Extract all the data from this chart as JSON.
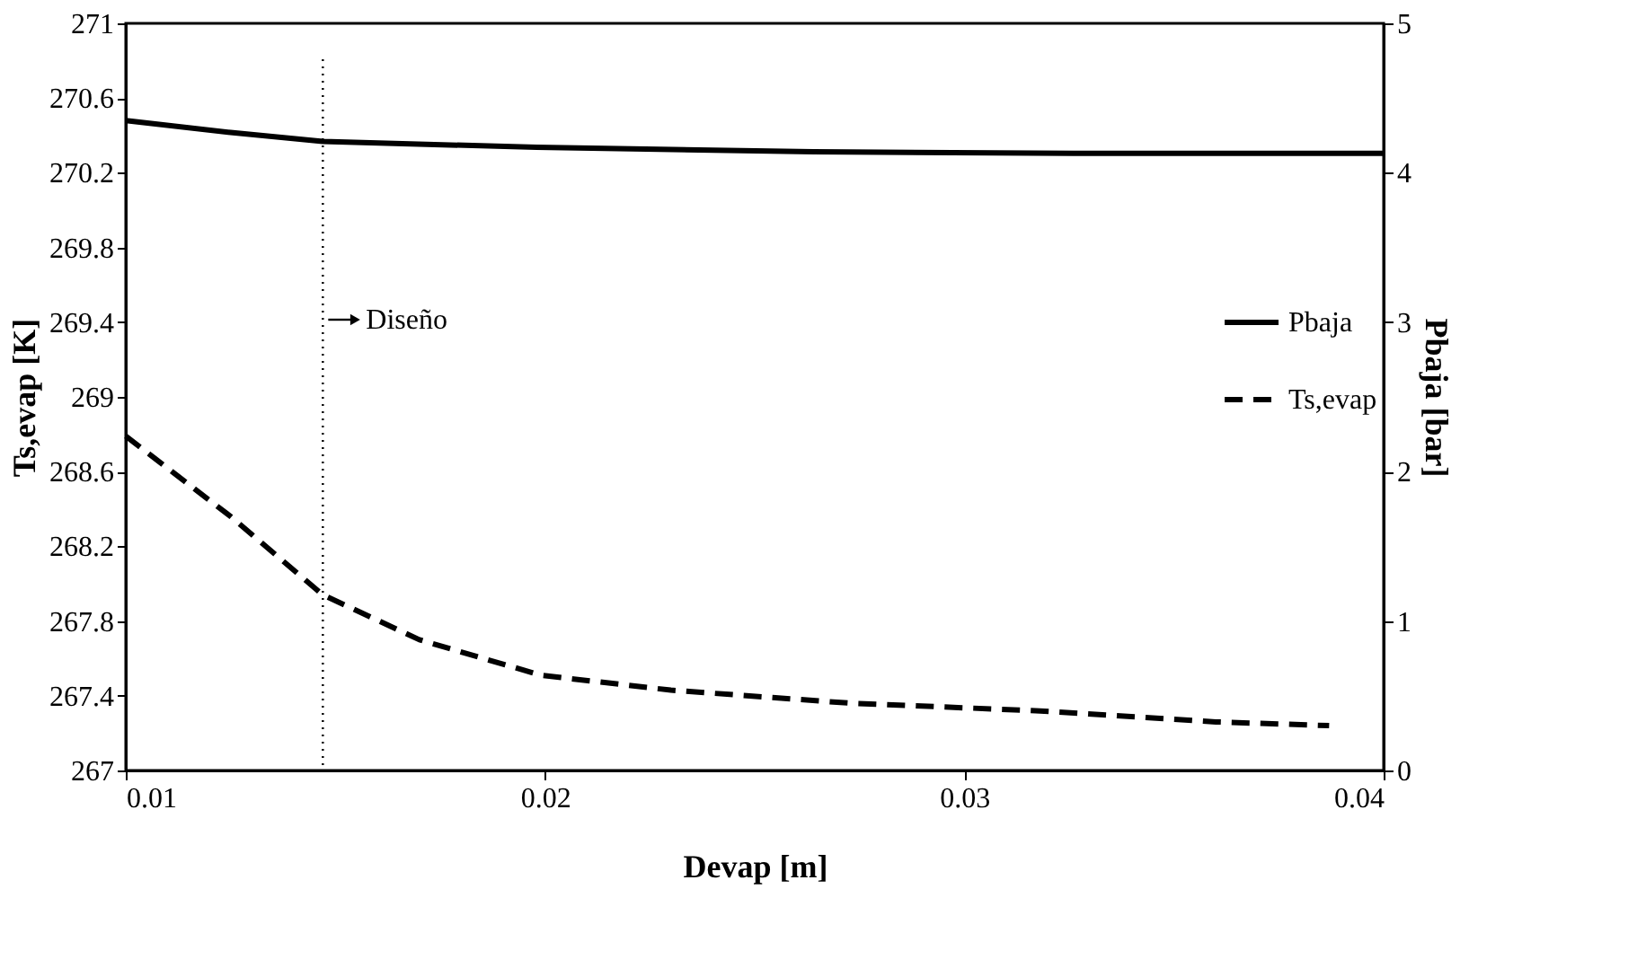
{
  "chart_data": {
    "type": "line",
    "xlabel": "Devap [m]",
    "ylabel": "Ts,evap [K]",
    "y2label": "Pbaja [bar]",
    "xlim": [
      0.01,
      0.04
    ],
    "xticks": [
      0.01,
      0.02,
      0.03,
      0.04
    ],
    "ylim": [
      267,
      271
    ],
    "yticks": [
      267,
      267.4,
      267.8,
      268.2,
      268.6,
      269,
      269.4,
      269.8,
      270.2,
      270.6,
      271
    ],
    "y2lim": [
      0,
      5
    ],
    "y2ticks": [
      0,
      1,
      2,
      3,
      4,
      5
    ],
    "grid": false,
    "legend": "right",
    "marker": "none",
    "series": [
      {
        "name": "Pbaja",
        "color": "#000000",
        "axis": "y2",
        "line_style": "solid",
        "x": [
          0.01,
          0.0125,
          0.0147,
          0.0198,
          0.0264,
          0.0326,
          0.04
        ],
        "values": [
          4.35,
          4.27,
          4.21,
          4.17,
          4.14,
          4.13,
          4.13
        ]
      },
      {
        "name": "Ts,evap",
        "color": "#000000",
        "line_style": "dashed",
        "x": [
          0.01,
          0.0125,
          0.0147,
          0.017,
          0.0199,
          0.023,
          0.0273,
          0.0317,
          0.036,
          0.0387
        ],
        "values": [
          268.79,
          268.36,
          267.94,
          267.7,
          267.51,
          267.43,
          267.36,
          267.32,
          267.26,
          267.24
        ]
      }
    ],
    "ref_lines": [
      {
        "axis": "x",
        "value": 0.0147,
        "label": "Diseño",
        "line_style": "dotted",
        "color": "#000000"
      }
    ]
  }
}
